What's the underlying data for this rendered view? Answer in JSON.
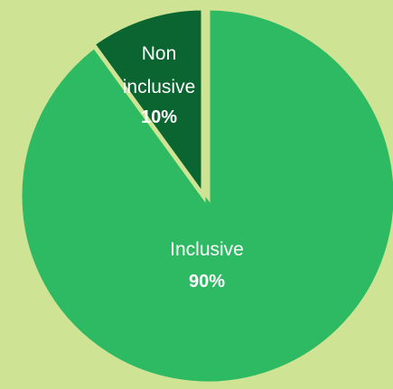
{
  "chart_data": {
    "type": "pie",
    "title": "",
    "slices": [
      {
        "label_lines": [
          "Inclusive"
        ],
        "value": 90,
        "value_label": "90%",
        "color": "#2dba62"
      },
      {
        "label_lines": [
          "Non",
          "inclusive"
        ],
        "value": 10,
        "value_label": "10%",
        "color": "#0a6530"
      }
    ],
    "background_color": "#cfe394",
    "separator_color": "#cfe394"
  }
}
